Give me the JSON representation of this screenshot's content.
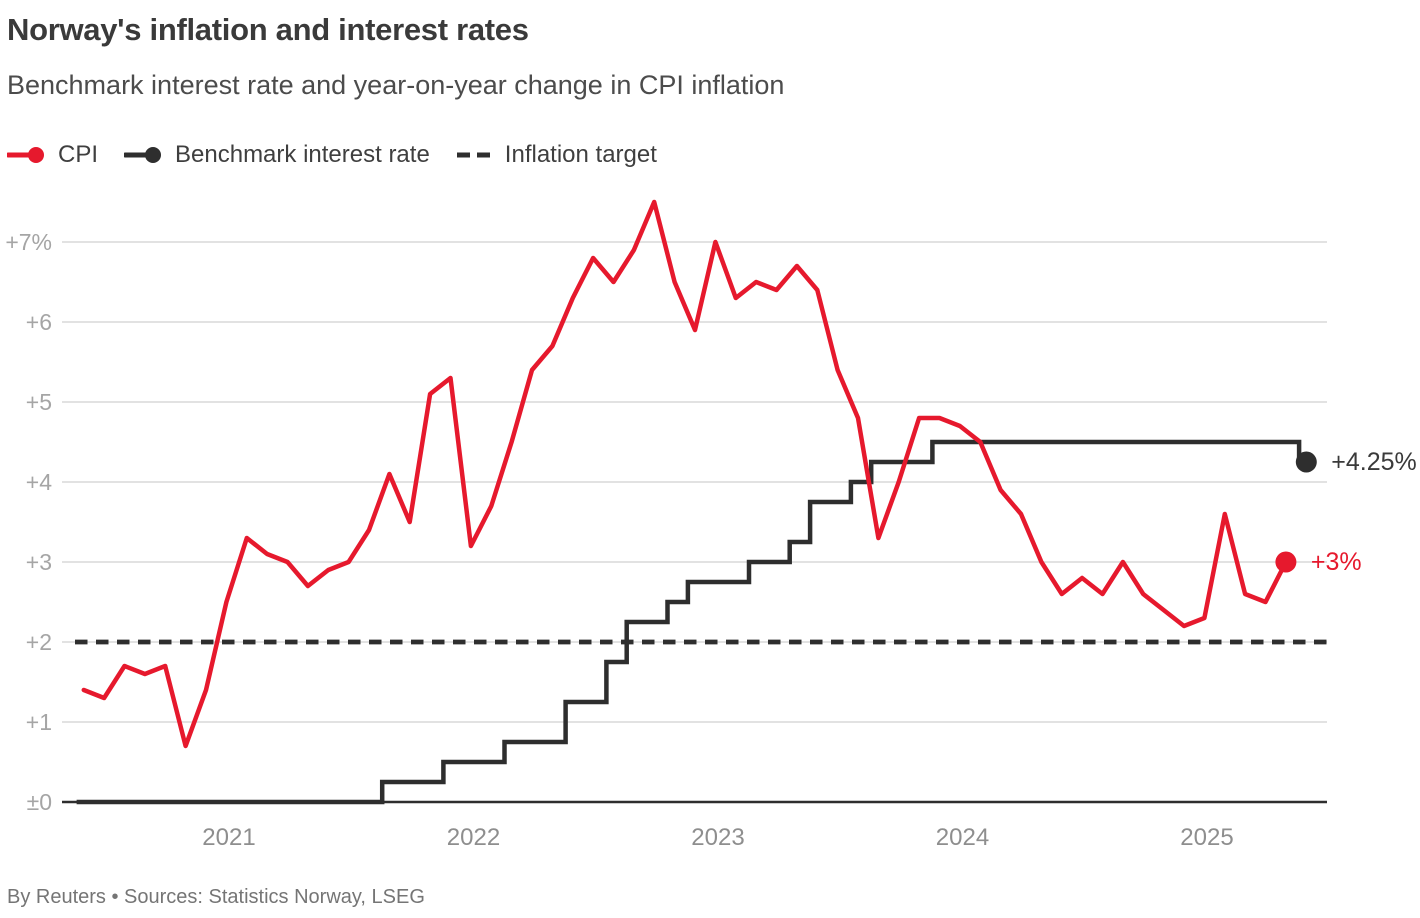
{
  "header": {
    "title": "Norway's inflation and interest rates",
    "subtitle": "Benchmark interest rate and year-on-year change in CPI inflation"
  },
  "legend": {
    "items": [
      {
        "id": "cpi",
        "label": "CPI",
        "color": "#e6192d",
        "marker": "line-dot"
      },
      {
        "id": "benchmark",
        "label": "Benchmark interest rate",
        "color": "#2e2e2e",
        "marker": "line-dot"
      },
      {
        "id": "inflation-target",
        "label": "Inflation target",
        "color": "#2e2e2e",
        "marker": "dashes"
      }
    ]
  },
  "chart_data": {
    "type": "line",
    "title": "Norway's inflation and interest rates",
    "subtitle": "Benchmark interest rate and year-on-year change in CPI inflation",
    "unit": "percent",
    "ylim": [
      0,
      7.5
    ],
    "x_range": [
      "2020-06",
      "2025-07"
    ],
    "grid": true,
    "colors": {
      "cpi": "#e6192d",
      "benchmark": "#2e2e2e",
      "target": "#2e2e2e",
      "grid": "#d9d9d9",
      "axis": "#2e2e2e",
      "y_tick_text": "#a5a5a5",
      "x_tick_text": "#8e8e8e",
      "benchmark_label_text": "#3a3a3a"
    },
    "y_axis": {
      "ticks": [
        {
          "value": 7,
          "label": "+7%"
        },
        {
          "value": 6,
          "label": "+6"
        },
        {
          "value": 5,
          "label": "+5"
        },
        {
          "value": 4,
          "label": "+4"
        },
        {
          "value": 3,
          "label": "+3"
        },
        {
          "value": 2,
          "label": "+2"
        },
        {
          "value": 1,
          "label": "+1"
        },
        {
          "value": 0,
          "label": "±0"
        }
      ]
    },
    "x_axis": {
      "ticks": [
        {
          "year": 2021,
          "label": "2021"
        },
        {
          "year": 2022,
          "label": "2022"
        },
        {
          "year": 2023,
          "label": "2023"
        },
        {
          "year": 2024,
          "label": "2024"
        },
        {
          "year": 2025,
          "label": "2025"
        }
      ]
    },
    "series": [
      {
        "id": "target",
        "name": "Inflation target",
        "type": "constant",
        "value": 2,
        "style": "dashed",
        "color": "#2e2e2e"
      },
      {
        "id": "benchmark",
        "name": "Benchmark interest rate",
        "type": "step",
        "color": "#2e2e2e",
        "end_label": "+4.25%",
        "label_color": "#3a3a3a",
        "end": "2025-06",
        "changes": [
          [
            "2020-06",
            0.0
          ],
          [
            "2021-09",
            0.25
          ],
          [
            "2021-12",
            0.5
          ],
          [
            "2022-03",
            0.75
          ],
          [
            "2022-06",
            1.25
          ],
          [
            "2022-08",
            1.75
          ],
          [
            "2022-09",
            2.25
          ],
          [
            "2022-11",
            2.5
          ],
          [
            "2022-12",
            2.75
          ],
          [
            "2023-03",
            3.0
          ],
          [
            "2023-05",
            3.25
          ],
          [
            "2023-06",
            3.75
          ],
          [
            "2023-08",
            4.0
          ],
          [
            "2023-09",
            4.25
          ],
          [
            "2023-12",
            4.5
          ],
          [
            "2025-06",
            4.25
          ]
        ]
      },
      {
        "id": "cpi",
        "name": "CPI",
        "type": "monthly",
        "color": "#e6192d",
        "end_label": "+3%",
        "start": "2020-06",
        "values": [
          1.4,
          1.3,
          1.7,
          1.6,
          1.7,
          0.7,
          1.4,
          2.5,
          3.3,
          3.1,
          3.0,
          2.7,
          2.9,
          3.0,
          3.4,
          4.1,
          3.5,
          5.1,
          5.3,
          3.2,
          3.7,
          4.5,
          5.4,
          5.7,
          6.3,
          6.8,
          6.5,
          6.9,
          7.5,
          6.5,
          5.9,
          7.0,
          6.3,
          6.5,
          6.4,
          6.7,
          6.4,
          5.4,
          4.8,
          3.3,
          4.0,
          4.8,
          4.8,
          4.7,
          4.5,
          3.9,
          3.6,
          3.0,
          2.6,
          2.8,
          2.6,
          3.0,
          2.6,
          2.4,
          2.2,
          2.3,
          3.6,
          2.6,
          2.5,
          3.0
        ]
      }
    ],
    "annotations": [
      {
        "series": "benchmark",
        "text": "+4.25%"
      },
      {
        "series": "cpi",
        "text": "+3%"
      }
    ]
  },
  "footer": {
    "attribution": "By Reuters • Sources: Statistics Norway, LSEG"
  }
}
